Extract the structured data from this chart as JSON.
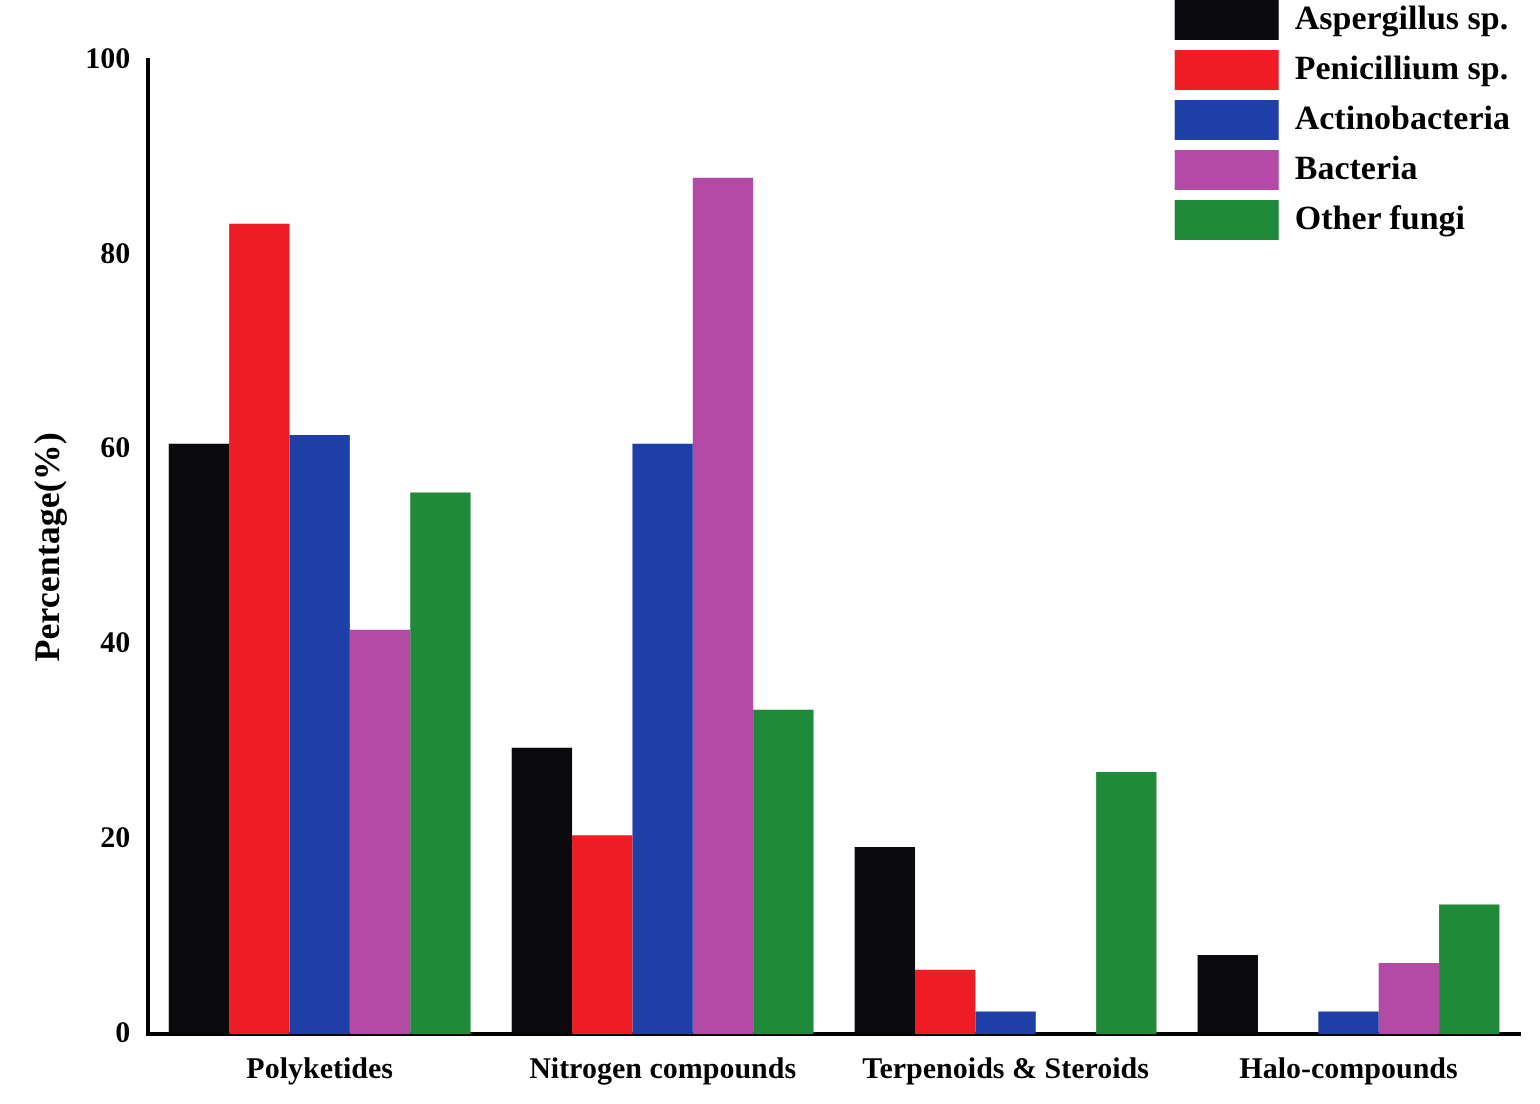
{
  "chart_data": {
    "type": "bar",
    "ylabel": "Percentage(%)",
    "categories": [
      "Polyketides",
      "Nitrogen compounds",
      "Terpenoids & Steroids",
      "Halo-compounds"
    ],
    "series": [
      {
        "name": "Aspergillus sp.",
        "color": "#0a0a0f",
        "values": [
          60.6,
          29.4,
          19.2,
          8.1
        ]
      },
      {
        "name": "Penicillium sp.",
        "color": "#ee1c24",
        "values": [
          83.2,
          20.4,
          6.6,
          null
        ]
      },
      {
        "name": "Actinobacteria",
        "color": "#1e3fa6",
        "values": [
          61.5,
          60.6,
          2.3,
          2.3
        ]
      },
      {
        "name": "Bacteria",
        "color": "#b34aa6",
        "values": [
          41.5,
          87.9,
          null,
          7.3
        ]
      },
      {
        "name": "Other fungi",
        "color": "#1f8a3a",
        "values": [
          55.6,
          33.3,
          26.9,
          13.3
        ]
      }
    ],
    "ylim": [
      0,
      100
    ],
    "yticks": [
      0,
      20,
      40,
      60,
      80,
      100
    ],
    "grid": false,
    "legend": "top right"
  }
}
